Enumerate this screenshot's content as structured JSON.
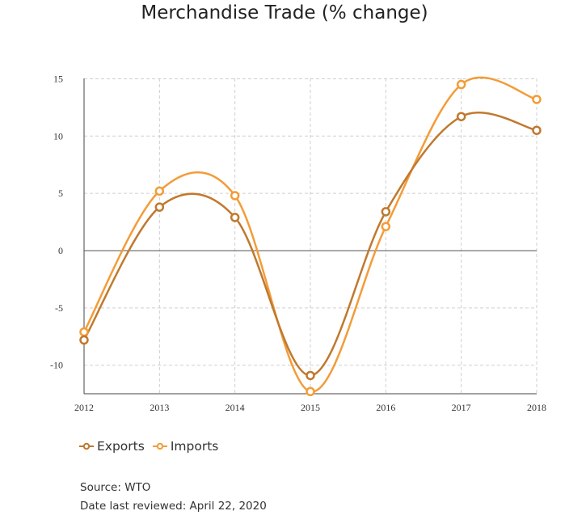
{
  "chart_data": {
    "type": "line",
    "title": "Merchandise Trade (% change)",
    "x": [
      "2012",
      "2013",
      "2014",
      "2015",
      "2016",
      "2017",
      "2018"
    ],
    "series": [
      {
        "name": "Exports",
        "color": "#c0792e",
        "values": [
          -7.8,
          3.8,
          2.9,
          -10.9,
          3.4,
          11.7,
          10.5
        ]
      },
      {
        "name": "Imports",
        "color": "#f39c38",
        "values": [
          -7.1,
          5.2,
          4.8,
          -12.3,
          2.1,
          14.5,
          13.2
        ]
      }
    ],
    "ylim": [
      -12.5,
      15
    ],
    "yticks": [
      15,
      10,
      5,
      0,
      -5,
      -10
    ],
    "grid": true,
    "legend_position": "bottom-left"
  },
  "legend": {
    "exports": "Exports",
    "imports": "Imports"
  },
  "notes": {
    "source": "Source: WTO",
    "reviewed": "Date last reviewed: April 22, 2020"
  }
}
